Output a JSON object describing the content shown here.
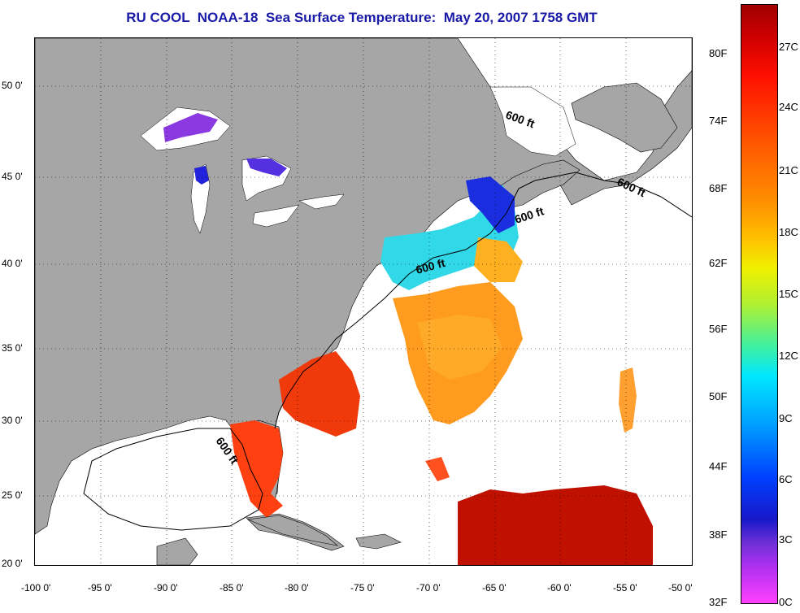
{
  "title": "RU COOL  NOAA-18  Sea Surface Temperature:  May 20, 2007 1758 GMT",
  "lon_ticks": [
    "-100 0'",
    "-95 0'",
    "-90 0'",
    "-85 0'",
    "-80 0'",
    "-75 0'",
    "-70 0'",
    "-65 0'",
    "-60 0'",
    "-55 0'",
    "-50 0'"
  ],
  "lat_ticks": [
    "50 0'",
    "45 0'",
    "40 0'",
    "35 0'",
    "30 0'",
    "25 0'",
    "20 0'"
  ],
  "isobath_labels": [
    "600 ft",
    "600 ft",
    "600 ft",
    "600 ft",
    "600 ft"
  ],
  "colorbar": {
    "fahrenheit_labels": [
      "80F",
      "74F",
      "68F",
      "62F",
      "56F",
      "50F",
      "44F",
      "38F",
      "32F"
    ],
    "celsius_labels": [
      "27C",
      "24C",
      "21C",
      "18C",
      "15C",
      "12C",
      "9C",
      "6C",
      "3C",
      "0C"
    ]
  },
  "colors": {
    "title": "#1a1aa8",
    "land": "#a6a6a6",
    "ocean_no_data": "#ffffff"
  }
}
